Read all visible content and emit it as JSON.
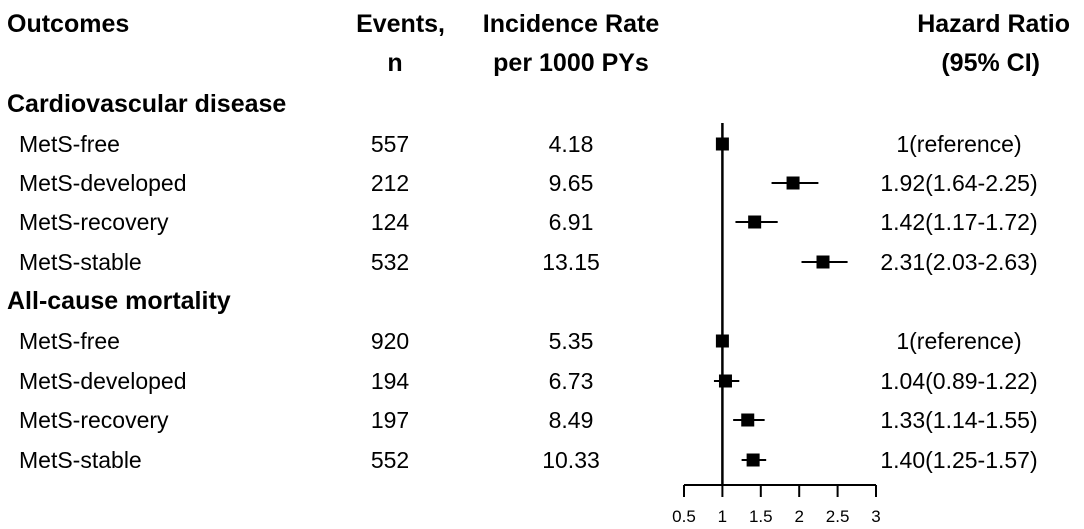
{
  "headers": {
    "outcomes": "Outcomes",
    "events_line1": "Events,",
    "events_line2": "n",
    "rate_line1": "Incidence Rate",
    "rate_line2": "per 1000 PYs",
    "hr_line1": "Hazard Ratio",
    "hr_line2": "(95% CI)"
  },
  "sections": [
    {
      "title": "Cardiovascular disease",
      "rows": [
        {
          "group": "MetS-free",
          "events": "557",
          "rate": "4.18",
          "hr_text": "1(reference)"
        },
        {
          "group": "MetS-developed",
          "events": "212",
          "rate": "9.65",
          "hr_text": "1.92(1.64-2.25)"
        },
        {
          "group": "MetS-recovery",
          "events": "124",
          "rate": "6.91",
          "hr_text": "1.42(1.17-1.72)"
        },
        {
          "group": "MetS-stable",
          "events": "532",
          "rate": "13.15",
          "hr_text": "2.31(2.03-2.63)"
        }
      ]
    },
    {
      "title": "All-cause mortality",
      "rows": [
        {
          "group": "MetS-free",
          "events": "920",
          "rate": "5.35",
          "hr_text": "1(reference)"
        },
        {
          "group": "MetS-developed",
          "events": "194",
          "rate": "6.73",
          "hr_text": "1.04(0.89-1.22)"
        },
        {
          "group": "MetS-recovery",
          "events": "197",
          "rate": "8.49",
          "hr_text": "1.33(1.14-1.55)"
        },
        {
          "group": "MetS-stable",
          "events": "552",
          "rate": "10.33",
          "hr_text": "1.40(1.25-1.57)"
        }
      ]
    }
  ],
  "chart_data": {
    "type": "forest",
    "xlabel": "Hazard Ratio",
    "reference_line": 1,
    "xlim": [
      0.5,
      3
    ],
    "xticks": [
      0.5,
      1,
      1.5,
      2,
      2.5,
      3
    ],
    "xtick_labels": [
      "0.5",
      "1",
      "1.5",
      "2",
      "2.5",
      "3"
    ],
    "series": [
      {
        "name": "Cardiovascular disease",
        "points": [
          {
            "label": "MetS-free",
            "hr": 1.0,
            "lower": 1.0,
            "upper": 1.0
          },
          {
            "label": "MetS-developed",
            "hr": 1.92,
            "lower": 1.64,
            "upper": 2.25
          },
          {
            "label": "MetS-recovery",
            "hr": 1.42,
            "lower": 1.17,
            "upper": 1.72
          },
          {
            "label": "MetS-stable",
            "hr": 2.31,
            "lower": 2.03,
            "upper": 2.63
          }
        ]
      },
      {
        "name": "All-cause mortality",
        "points": [
          {
            "label": "MetS-free",
            "hr": 1.0,
            "lower": 1.0,
            "upper": 1.0
          },
          {
            "label": "MetS-developed",
            "hr": 1.04,
            "lower": 0.89,
            "upper": 1.22
          },
          {
            "label": "MetS-recovery",
            "hr": 1.33,
            "lower": 1.14,
            "upper": 1.55
          },
          {
            "label": "MetS-stable",
            "hr": 1.4,
            "lower": 1.25,
            "upper": 1.57
          }
        ]
      }
    ]
  }
}
